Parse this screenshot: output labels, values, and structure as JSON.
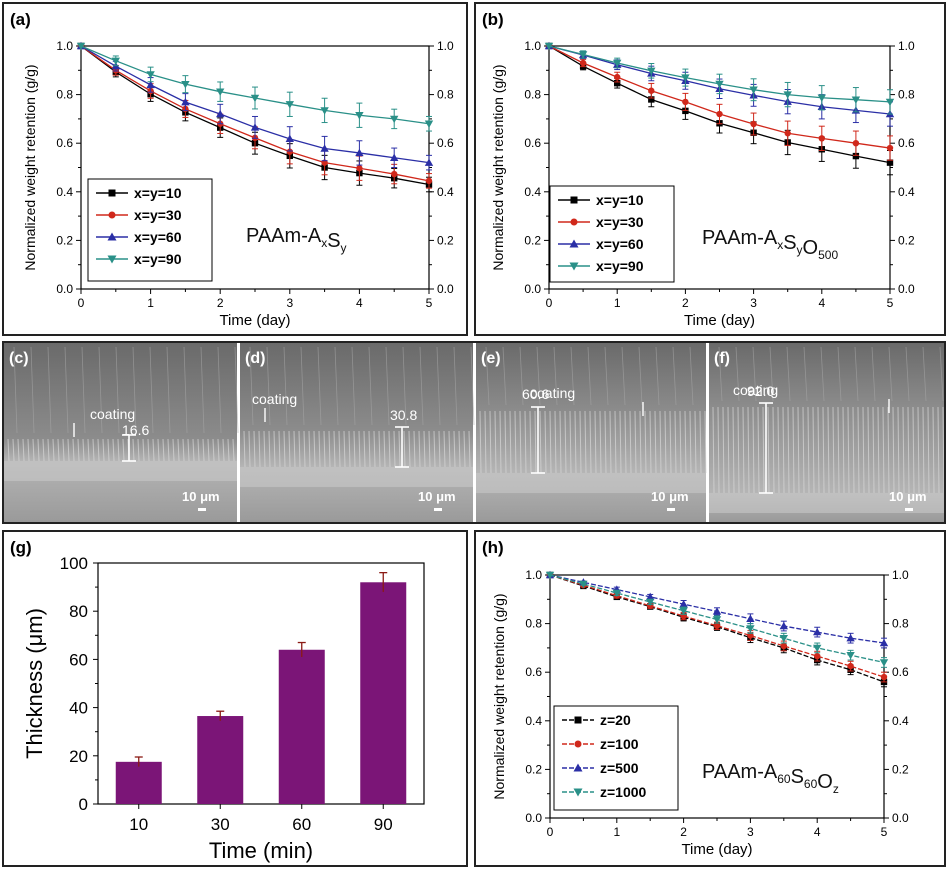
{
  "chart_data": [
    {
      "panel": "(a)",
      "type": "line",
      "xlabel": "Time (day)",
      "ylabel": "Normalized weight retention (g/g)",
      "xlim": [
        0,
        5
      ],
      "ylim": [
        0,
        1.0
      ],
      "xticks": [
        "0",
        "1",
        "2",
        "3",
        "4",
        "5"
      ],
      "yticks": [
        "0.0",
        "0.2",
        "0.4",
        "0.6",
        "0.8",
        "1.0"
      ],
      "annotation": "PAAm-AxSy",
      "legend_position": "bottom-left",
      "x": [
        0,
        0.5,
        1,
        1.5,
        2,
        2.5,
        3,
        3.5,
        4,
        4.5,
        5
      ],
      "series": [
        {
          "name": "x=y=10",
          "color": "#000000",
          "marker": "square",
          "values": [
            1.0,
            0.893,
            0.802,
            0.727,
            0.664,
            0.6,
            0.548,
            0.5,
            0.477,
            0.456,
            0.43
          ]
        },
        {
          "name": "x=y=30",
          "color": "#d0281b",
          "marker": "circle",
          "values": [
            1.0,
            0.9,
            0.815,
            0.741,
            0.68,
            0.622,
            0.565,
            0.52,
            0.497,
            0.473,
            0.445
          ]
        },
        {
          "name": "x=y=60",
          "color": "#2b2fa6",
          "marker": "triangle-up",
          "values": [
            1.0,
            0.917,
            0.84,
            0.769,
            0.72,
            0.665,
            0.618,
            0.578,
            0.56,
            0.54,
            0.52
          ]
        },
        {
          "name": "x=y=90",
          "color": "#2a9088",
          "marker": "triangle-down",
          "values": [
            1.0,
            0.939,
            0.883,
            0.843,
            0.812,
            0.786,
            0.76,
            0.735,
            0.715,
            0.7,
            0.68
          ]
        }
      ],
      "errors": [
        0,
        0.02,
        0.03,
        0.035,
        0.04,
        0.045,
        0.05,
        0.05,
        0.05,
        0.04,
        0.03
      ]
    },
    {
      "panel": "(b)",
      "type": "line",
      "xlabel": "Time (day)",
      "ylabel": "Normalized weight retention (g/g)",
      "xlim": [
        0,
        5
      ],
      "ylim": [
        0,
        1.0
      ],
      "xticks": [
        "0",
        "1",
        "2",
        "3",
        "4",
        "5"
      ],
      "yticks": [
        "0.0",
        "0.2",
        "0.4",
        "0.6",
        "0.8",
        "1.0"
      ],
      "annotation": "PAAm-AxSyO500",
      "legend_position": "bottom-left",
      "x": [
        0,
        0.5,
        1,
        1.5,
        2,
        2.5,
        3,
        3.5,
        4,
        4.5,
        5
      ],
      "series": [
        {
          "name": "x=y=10",
          "color": "#000000",
          "marker": "square",
          "values": [
            1.0,
            0.917,
            0.847,
            0.78,
            0.733,
            0.682,
            0.643,
            0.603,
            0.575,
            0.547,
            0.52
          ]
        },
        {
          "name": "x=y=30",
          "color": "#d0281b",
          "marker": "circle",
          "values": [
            1.0,
            0.93,
            0.872,
            0.816,
            0.77,
            0.72,
            0.679,
            0.641,
            0.62,
            0.6,
            0.58
          ]
        },
        {
          "name": "x=y=60",
          "color": "#2b2fa6",
          "marker": "triangle-up",
          "values": [
            1.0,
            0.963,
            0.923,
            0.887,
            0.857,
            0.824,
            0.797,
            0.771,
            0.75,
            0.735,
            0.72
          ]
        },
        {
          "name": "x=y=90",
          "color": "#2a9088",
          "marker": "triangle-down",
          "values": [
            1.0,
            0.965,
            0.93,
            0.898,
            0.87,
            0.844,
            0.82,
            0.8,
            0.787,
            0.779,
            0.77
          ]
        }
      ],
      "errors": [
        0,
        0.015,
        0.02,
        0.03,
        0.035,
        0.04,
        0.045,
        0.05,
        0.05,
        0.05,
        0.05
      ]
    },
    {
      "panel": "(g)",
      "type": "bar",
      "xlabel": "Time (min)",
      "ylabel": "Thickness (μm)",
      "categories": [
        "10",
        "30",
        "60",
        "90"
      ],
      "values": [
        17.5,
        36.5,
        64,
        92
      ],
      "errors": [
        2,
        2,
        3,
        4
      ],
      "ylim": [
        0,
        100
      ],
      "yticks": [
        "0",
        "20",
        "40",
        "60",
        "80",
        "100"
      ],
      "color": "#7b1577"
    },
    {
      "panel": "(h)",
      "type": "line",
      "xlabel": "Time (day)",
      "ylabel": "Normalized weight retention (g/g)",
      "xlim": [
        0,
        5
      ],
      "ylim": [
        0,
        1.0
      ],
      "xticks": [
        "0",
        "1",
        "2",
        "3",
        "4",
        "5"
      ],
      "yticks": [
        "0.0",
        "0.2",
        "0.4",
        "0.6",
        "0.8",
        "1.0"
      ],
      "annotation": "PAAm-A60S60Oz",
      "legend_position": "bottom-left",
      "x": [
        0,
        0.5,
        1,
        1.5,
        2,
        2.5,
        3,
        3.5,
        4,
        4.5,
        5
      ],
      "series": [
        {
          "name": "z=20",
          "color": "#000000",
          "marker": "square",
          "values": [
            1.0,
            0.955,
            0.91,
            0.87,
            0.826,
            0.787,
            0.742,
            0.7,
            0.65,
            0.61,
            0.56
          ]
        },
        {
          "name": "z=100",
          "color": "#d0281b",
          "marker": "circle",
          "values": [
            1.0,
            0.958,
            0.915,
            0.873,
            0.831,
            0.791,
            0.751,
            0.708,
            0.666,
            0.625,
            0.58
          ]
        },
        {
          "name": "z=500",
          "color": "#2b2fa6",
          "marker": "triangle-up",
          "values": [
            1.0,
            0.97,
            0.94,
            0.91,
            0.88,
            0.85,
            0.82,
            0.79,
            0.765,
            0.74,
            0.72
          ]
        },
        {
          "name": "z=1000",
          "color": "#2a9088",
          "marker": "triangle-down",
          "values": [
            1.0,
            0.963,
            0.926,
            0.889,
            0.853,
            0.817,
            0.78,
            0.74,
            0.7,
            0.67,
            0.64
          ]
        }
      ],
      "errors": [
        0,
        0.005,
        0.01,
        0.01,
        0.015,
        0.015,
        0.02,
        0.02,
        0.02,
        0.02,
        0.02
      ]
    }
  ],
  "panels": {
    "a": "(a)",
    "b": "(b)",
    "g": "(g)",
    "h": "(h)"
  },
  "sem": [
    {
      "panel": "(c)",
      "thickness_label": "16.6",
      "coating_label": "coating",
      "scale": "10 μm"
    },
    {
      "panel": "(d)",
      "thickness_label": "30.8",
      "coating_label": "coating",
      "scale": "10 μm"
    },
    {
      "panel": "(e)",
      "thickness_label": "60.6",
      "coating_label": "coating",
      "scale": "10 μm"
    },
    {
      "panel": "(f)",
      "thickness_label": "92.0",
      "coating_label": "coating",
      "scale": "10 μm"
    }
  ]
}
